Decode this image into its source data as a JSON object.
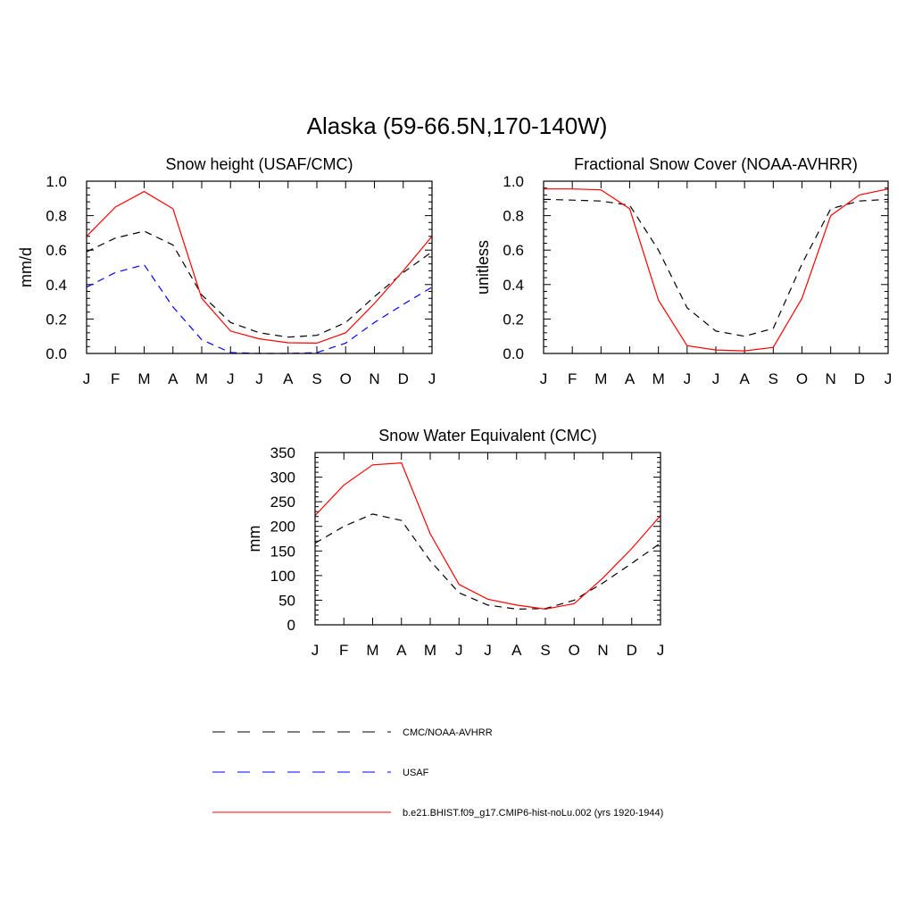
{
  "figure": {
    "title": "Alaska (59-66.5N,170-140W)"
  },
  "chart_data": [
    {
      "type": "line",
      "title": "Snow height (USAF/CMC)",
      "ylabel": "mm/d",
      "xlabel": "",
      "categories": [
        "J",
        "F",
        "M",
        "A",
        "M",
        "J",
        "J",
        "A",
        "S",
        "O",
        "N",
        "D",
        "J"
      ],
      "ylim": [
        0,
        1.0
      ],
      "yticks": [
        0.0,
        0.2,
        0.4,
        0.6,
        0.8,
        1.0
      ],
      "ytick_labels": [
        "0.0",
        "0.2",
        "0.4",
        "0.6",
        "0.8",
        "1.0"
      ],
      "series": [
        {
          "key": "obs",
          "color": "#000000",
          "dash": "dashed",
          "values": [
            0.59,
            0.67,
            0.71,
            0.63,
            0.34,
            0.18,
            0.12,
            0.095,
            0.105,
            0.18,
            0.33,
            0.47,
            0.59
          ]
        },
        {
          "key": "usaf",
          "color": "#0000ff",
          "dash": "dashed",
          "values": [
            0.385,
            0.47,
            0.515,
            0.27,
            0.08,
            0.005,
            0.0,
            0.0,
            0.005,
            0.06,
            0.18,
            0.285,
            0.385
          ]
        },
        {
          "key": "model",
          "color": "#ff0000",
          "dash": "solid",
          "values": [
            0.68,
            0.85,
            0.94,
            0.84,
            0.32,
            0.13,
            0.085,
            0.062,
            0.06,
            0.12,
            0.29,
            0.48,
            0.68
          ]
        }
      ]
    },
    {
      "type": "line",
      "title": "Fractional Snow Cover (NOAA-AVHRR)",
      "ylabel": "unitless",
      "xlabel": "",
      "categories": [
        "J",
        "F",
        "M",
        "A",
        "M",
        "J",
        "J",
        "A",
        "S",
        "O",
        "N",
        "D",
        "J"
      ],
      "ylim": [
        0,
        1.0
      ],
      "yticks": [
        0.0,
        0.2,
        0.4,
        0.6,
        0.8,
        1.0
      ],
      "ytick_labels": [
        "0.0",
        "0.2",
        "0.4",
        "0.6",
        "0.8",
        "1.0"
      ],
      "series": [
        {
          "key": "obs",
          "color": "#000000",
          "dash": "dashed",
          "values": [
            0.895,
            0.89,
            0.885,
            0.86,
            0.6,
            0.265,
            0.13,
            0.1,
            0.145,
            0.52,
            0.84,
            0.885,
            0.895
          ]
        },
        {
          "key": "model",
          "color": "#ff0000",
          "dash": "solid",
          "values": [
            0.955,
            0.955,
            0.95,
            0.84,
            0.31,
            0.045,
            0.02,
            0.015,
            0.035,
            0.32,
            0.8,
            0.92,
            0.955
          ]
        }
      ]
    },
    {
      "type": "line",
      "title": "Snow Water Equivalent (CMC)",
      "ylabel": "mm",
      "xlabel": "",
      "categories": [
        "J",
        "F",
        "M",
        "A",
        "M",
        "J",
        "J",
        "A",
        "S",
        "O",
        "N",
        "D",
        "J"
      ],
      "ylim": [
        0,
        350
      ],
      "yticks": [
        0,
        50,
        100,
        150,
        200,
        250,
        300,
        350
      ],
      "ytick_labels": [
        "0",
        "50",
        "100",
        "150",
        "200",
        "250",
        "300",
        "350"
      ],
      "series": [
        {
          "key": "obs",
          "color": "#000000",
          "dash": "dashed",
          "values": [
            166,
            200,
            225,
            212,
            130,
            65,
            40,
            32,
            33,
            50,
            85,
            125,
            166
          ]
        },
        {
          "key": "model",
          "color": "#ff0000",
          "dash": "solid",
          "values": [
            222,
            284,
            325,
            329,
            185,
            82,
            52,
            40,
            32,
            43,
            95,
            155,
            222
          ]
        }
      ]
    }
  ],
  "legend": {
    "placement": "bottom",
    "items": [
      {
        "key": "obs",
        "label": "CMC/NOAA-AVHRR",
        "color": "#000000",
        "dash": "dashed"
      },
      {
        "key": "usaf",
        "label": "USAF",
        "color": "#0000ff",
        "dash": "dashed"
      },
      {
        "key": "model",
        "label": "b.e21.BHIST.f09_g17.CMIP6-hist-noLu.002 (yrs 1920-1944)",
        "color": "#ff0000",
        "dash": "solid"
      }
    ]
  }
}
